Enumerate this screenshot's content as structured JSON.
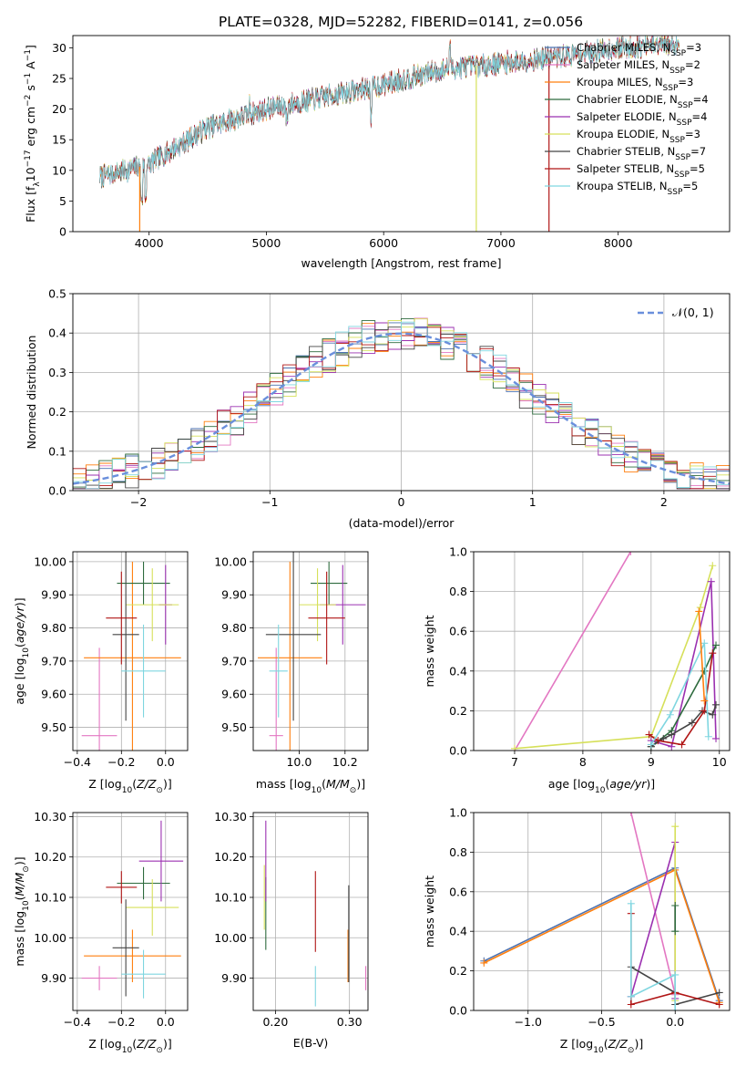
{
  "figure_title": "PLATE=0328, MJD=52282, FIBERID=0141, z=0.056",
  "colors": {
    "Chabrier MILES": "#4c72b0",
    "Salpeter MILES": "#e377c2",
    "Kroupa MILES": "#ff7f0e",
    "Chabrier ELODIE": "#2e6b3e",
    "Salpeter ELODIE": "#9b30b0",
    "Kroupa ELODIE": "#d6e05a",
    "Chabrier STELIB": "#444444",
    "Salpeter STELIB": "#b01515",
    "Kroupa STELIB": "#7fd6e0",
    "normal": "#6a8fdc"
  },
  "chart_data": [
    {
      "id": "spectrum",
      "type": "line",
      "title": "PLATE=0328, MJD=52282, FIBERID=0141, z=0.056",
      "xlabel": "wavelength [Angstrom, rest frame]",
      "ylabel": "Flux [f_λ 10^-17 erg cm^-2 s^-1 A^-1]",
      "xlim": [
        3350,
        8950
      ],
      "ylim": [
        0,
        32
      ],
      "xticks": [
        4000,
        5000,
        6000,
        7000,
        8000
      ],
      "yticks": [
        0,
        5,
        10,
        15,
        20,
        25,
        30
      ],
      "continuum": {
        "x": [
          3600,
          4000,
          4500,
          5000,
          5500,
          6000,
          6500,
          7000,
          7500,
          8000,
          8500
        ],
        "y": [
          9,
          11,
          17,
          20,
          22,
          24,
          26.5,
          27.5,
          28.5,
          30,
          30.5
        ]
      },
      "legend": [
        {
          "label": "Chabrier MILES",
          "nssp": "3"
        },
        {
          "label": "Salpeter MILES",
          "nssp": "2"
        },
        {
          "label": "Kroupa MILES",
          "nssp": "3"
        },
        {
          "label": "Chabrier ELODIE",
          "nssp": "4"
        },
        {
          "label": "Salpeter ELODIE",
          "nssp": "4"
        },
        {
          "label": "Kroupa ELODIE",
          "nssp": "3"
        },
        {
          "label": "Chabrier STELIB",
          "nssp": "7"
        },
        {
          "label": "Salpeter STELIB",
          "nssp": "5"
        },
        {
          "label": "Kroupa STELIB",
          "nssp": "5"
        }
      ],
      "legend_loc": "right"
    },
    {
      "id": "residuals",
      "type": "step",
      "xlabel": "(data-model)/error",
      "ylabel": "Normed distribution",
      "xlim": [
        -2.5,
        2.5
      ],
      "ylim": [
        0,
        0.5
      ],
      "xticks": [
        -2,
        -1,
        0,
        1,
        2
      ],
      "yticks": [
        0.0,
        0.1,
        0.2,
        0.3,
        0.4,
        0.5
      ],
      "legend": [
        {
          "label": "𝒩(0, 1)"
        }
      ],
      "legend_loc": "upper right"
    },
    {
      "id": "age_vs_Z",
      "type": "errorbar",
      "xlabel": "Z [log10(Z/Z☉)]",
      "ylabel": "age [log10(age/yr)]",
      "xlim": [
        -0.42,
        0.1
      ],
      "ylim": [
        9.43,
        10.03
      ],
      "xticks": [
        -0.4,
        -0.2,
        0.0
      ],
      "yticks": [
        9.5,
        9.6,
        9.7,
        9.8,
        9.9,
        10.0
      ],
      "points": [
        {
          "model": "Salpeter MILES",
          "x": -0.3,
          "xerr": 0.08,
          "y": 9.475,
          "yerr": 0.265
        },
        {
          "model": "Kroupa MILES",
          "x": -0.15,
          "xerr": 0.22,
          "y": 9.71,
          "yerr": 0.29
        },
        {
          "model": "Chabrier ELODIE",
          "x": -0.1,
          "xerr": 0.12,
          "y": 9.935,
          "yerr": 0.065
        },
        {
          "model": "Salpeter ELODIE",
          "x": 0.0,
          "xerr": 0.03,
          "y": 9.87,
          "yerr": 0.12
        },
        {
          "model": "Kroupa ELODIE",
          "x": -0.06,
          "xerr": 0.12,
          "y": 9.87,
          "yerr": 0.11
        },
        {
          "model": "Chabrier STELIB",
          "x": -0.18,
          "xerr": 0.06,
          "y": 9.78,
          "yerr": 0.26
        },
        {
          "model": "Salpeter STELIB",
          "x": -0.2,
          "xerr": 0.07,
          "y": 9.83,
          "yerr": 0.14
        },
        {
          "model": "Kroupa STELIB",
          "x": -0.1,
          "xerr": 0.1,
          "y": 9.67,
          "yerr": 0.14
        }
      ]
    },
    {
      "id": "age_vs_mass",
      "type": "errorbar",
      "xlabel": "mass [log10(M/M☉)]",
      "ylabel": "",
      "xlim": [
        9.8,
        10.3
      ],
      "ylim": [
        9.43,
        10.03
      ],
      "xticks": [
        10.0,
        10.2
      ],
      "yticks": [
        9.5,
        9.6,
        9.7,
        9.8,
        9.9,
        10.0
      ],
      "points": [
        {
          "model": "Salpeter MILES",
          "x": 9.9,
          "xerr": 0.03,
          "y": 9.475,
          "yerr": 0.265
        },
        {
          "model": "Kroupa MILES",
          "x": 9.96,
          "xerr": 0.14,
          "y": 9.71,
          "yerr": 0.29
        },
        {
          "model": "Chabrier ELODIE",
          "x": 10.13,
          "xerr": 0.08,
          "y": 9.935,
          "yerr": 0.065
        },
        {
          "model": "Salpeter ELODIE",
          "x": 10.19,
          "xerr": 0.1,
          "y": 9.87,
          "yerr": 0.12
        },
        {
          "model": "Kroupa ELODIE",
          "x": 10.08,
          "xerr": 0.08,
          "y": 9.87,
          "yerr": 0.11
        },
        {
          "model": "Chabrier STELIB",
          "x": 9.975,
          "xerr": 0.12,
          "y": 9.78,
          "yerr": 0.26
        },
        {
          "model": "Salpeter STELIB",
          "x": 10.12,
          "xerr": 0.08,
          "y": 9.83,
          "yerr": 0.14
        },
        {
          "model": "Kroupa STELIB",
          "x": 9.91,
          "xerr": 0.04,
          "y": 9.67,
          "yerr": 0.14
        }
      ]
    },
    {
      "id": "massweight_vs_age",
      "type": "line",
      "xlabel": "age [log10(age/yr)]",
      "ylabel": "mass weight",
      "xlim": [
        6.4,
        10.15
      ],
      "ylim": [
        0,
        1
      ],
      "xticks": [
        7,
        8,
        9,
        10
      ],
      "yticks": [
        0.0,
        0.2,
        0.4,
        0.6,
        0.8,
        1.0
      ],
      "series": [
        {
          "model": "Salpeter MILES",
          "x": [
            7.0,
            8.7
          ],
          "y": [
            0.0,
            1.0
          ]
        },
        {
          "model": "Kroupa ELODIE",
          "x": [
            7.0,
            9.0,
            9.72,
            9.9
          ],
          "y": [
            0.01,
            0.07,
            0.72,
            0.93
          ]
        },
        {
          "model": "Salpeter ELODIE",
          "x": [
            9.0,
            9.3,
            9.88,
            9.95
          ],
          "y": [
            0.05,
            0.02,
            0.85,
            0.06
          ]
        },
        {
          "model": "Chabrier ELODIE",
          "x": [
            9.0,
            9.3,
            9.78,
            9.95
          ],
          "y": [
            0.02,
            0.1,
            0.4,
            0.53
          ]
        },
        {
          "model": "Chabrier STELIB",
          "x": [
            9.0,
            9.18,
            9.3,
            9.6,
            9.75,
            9.9,
            9.95
          ],
          "y": [
            0.02,
            0.06,
            0.08,
            0.14,
            0.2,
            0.18,
            0.23
          ]
        },
        {
          "model": "Salpeter STELIB",
          "x": [
            8.97,
            9.1,
            9.45,
            9.78,
            9.9
          ],
          "y": [
            0.08,
            0.05,
            0.03,
            0.2,
            0.49
          ]
        },
        {
          "model": "Kroupa STELIB",
          "x": [
            9.0,
            9.28,
            9.78,
            9.84
          ],
          "y": [
            0.03,
            0.18,
            0.54,
            0.07
          ]
        },
        {
          "model": "Kroupa MILES",
          "x": [
            9.7,
            9.78
          ],
          "y": [
            0.7,
            0.25
          ]
        }
      ]
    },
    {
      "id": "mass_vs_Z",
      "type": "errorbar",
      "xlabel": "Z [log10(Z/Z☉)]",
      "ylabel": "mass [log10(M/M☉)]",
      "xlim": [
        -0.42,
        0.1
      ],
      "ylim": [
        9.82,
        10.31
      ],
      "xticks": [
        -0.4,
        -0.2,
        0.0
      ],
      "yticks": [
        9.9,
        10.0,
        10.1,
        10.2,
        10.3
      ],
      "points": [
        {
          "model": "Salpeter MILES",
          "x": -0.3,
          "xerr": 0.08,
          "y": 9.9,
          "yerr": 0.03
        },
        {
          "model": "Kroupa MILES",
          "x": -0.15,
          "xerr": 0.22,
          "y": 9.955,
          "yerr": 0.065
        },
        {
          "model": "Chabrier ELODIE",
          "x": -0.1,
          "xerr": 0.12,
          "y": 10.135,
          "yerr": 0.04
        },
        {
          "model": "Salpeter ELODIE",
          "x": -0.02,
          "xerr": 0.1,
          "y": 10.19,
          "yerr": 0.1
        },
        {
          "model": "Kroupa ELODIE",
          "x": -0.06,
          "xerr": 0.12,
          "y": 10.075,
          "yerr": 0.07
        },
        {
          "model": "Chabrier STELIB",
          "x": -0.18,
          "xerr": 0.06,
          "y": 9.975,
          "yerr": 0.12
        },
        {
          "model": "Salpeter STELIB",
          "x": -0.2,
          "xerr": 0.07,
          "y": 10.125,
          "yerr": 0.04
        },
        {
          "model": "Kroupa STELIB",
          "x": -0.1,
          "xerr": 0.1,
          "y": 9.91,
          "yerr": 0.06
        }
      ]
    },
    {
      "id": "mass_vs_ebv",
      "type": "errorbar",
      "xlabel": "E(B-V)",
      "ylabel": "",
      "xlim": [
        0.17,
        0.325
      ],
      "ylim": [
        9.82,
        10.31
      ],
      "xticks": [
        0.2,
        0.3
      ],
      "yticks": [
        9.9,
        10.0,
        10.1,
        10.2,
        10.3
      ],
      "points": [
        {
          "model": "Salpeter MILES",
          "x": 0.322,
          "xerr": 0,
          "y": 9.9,
          "yerr": 0.03
        },
        {
          "model": "Kroupa MILES",
          "x": 0.298,
          "xerr": 0,
          "y": 9.955,
          "yerr": 0.065
        },
        {
          "model": "Chabrier ELODIE",
          "x": 0.187,
          "xerr": 0,
          "y": 10.06,
          "yerr": 0.09
        },
        {
          "model": "Salpeter ELODIE",
          "x": 0.187,
          "xerr": 0,
          "y": 10.19,
          "yerr": 0.1
        },
        {
          "model": "Kroupa ELODIE",
          "x": 0.185,
          "xerr": 0,
          "y": 10.1,
          "yerr": 0.08
        },
        {
          "model": "Salpeter STELIB",
          "x": 0.254,
          "xerr": 0,
          "y": 10.065,
          "yerr": 0.1
        },
        {
          "model": "Kroupa STELIB",
          "x": 0.254,
          "xerr": 0,
          "y": 9.88,
          "yerr": 0.05
        },
        {
          "model": "Chabrier STELIB",
          "x": 0.299,
          "xerr": 0,
          "y": 10.01,
          "yerr": 0.12
        }
      ]
    },
    {
      "id": "massweight_vs_Z",
      "type": "line",
      "xlabel": "Z [log10(Z/Z☉)]",
      "ylabel": "mass weight",
      "xlim": [
        -1.37,
        0.37
      ],
      "ylim": [
        0,
        1
      ],
      "xticks": [
        -1.0,
        -0.5,
        0.0
      ],
      "yticks": [
        0.0,
        0.2,
        0.4,
        0.6,
        0.8,
        1.0
      ],
      "series": [
        {
          "model": "Chabrier MILES",
          "x": [
            -1.3,
            0.0,
            0.3
          ],
          "y": [
            0.25,
            0.72,
            0.05
          ]
        },
        {
          "model": "Kroupa MILES",
          "x": [
            -1.3,
            0.0,
            0.3
          ],
          "y": [
            0.24,
            0.71,
            0.04
          ]
        },
        {
          "model": "Salpeter MILES",
          "x": [
            -0.3,
            0.0
          ],
          "y": [
            1.0,
            0.08
          ]
        },
        {
          "model": "Salpeter ELODIE",
          "x": [
            -0.3,
            0.0,
            0.0
          ],
          "y": [
            0.07,
            0.85,
            0.06
          ]
        },
        {
          "model": "Kroupa ELODIE",
          "x": [
            0.0,
            0.0
          ],
          "y": [
            0.05,
            0.93
          ]
        },
        {
          "model": "Chabrier ELODIE",
          "x": [
            0.0,
            0.0
          ],
          "y": [
            0.4,
            0.53
          ]
        },
        {
          "model": "Chabrier STELIB",
          "x": [
            -0.3,
            0.0,
            0.0,
            0.3
          ],
          "y": [
            0.22,
            0.09,
            0.03,
            0.09
          ]
        },
        {
          "model": "Salpeter STELIB",
          "x": [
            -0.3,
            -0.3,
            0.0,
            0.3
          ],
          "y": [
            0.49,
            0.03,
            0.09,
            0.03
          ]
        },
        {
          "model": "Kroupa STELIB",
          "x": [
            -0.3,
            -0.3,
            0.0,
            0.0
          ],
          "y": [
            0.54,
            0.07,
            0.18,
            0.0
          ]
        }
      ]
    }
  ]
}
